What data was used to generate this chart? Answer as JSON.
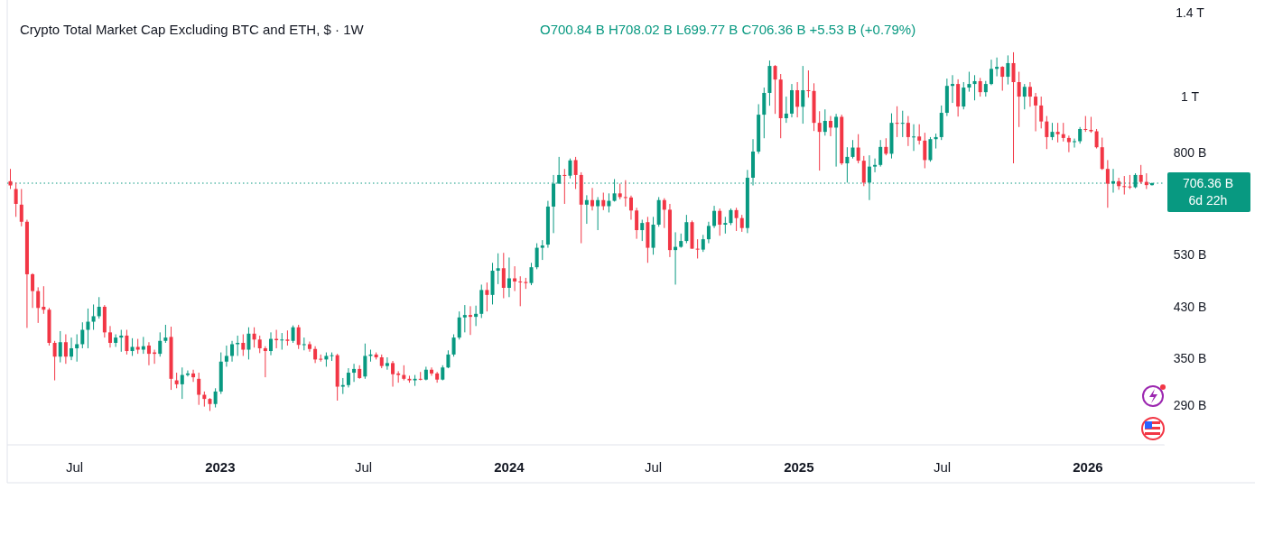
{
  "chart_data": {
    "type": "candlestick",
    "title": "Crypto Total Market Cap Excluding BTC and ETH, $ · 1W",
    "subtitle": "O700.84 B H708.02 B L699.77 B C706.36 B +5.53 B (+0.79%)",
    "x": [
      "2022-04-11",
      "2022-04-18",
      "2022-04-25",
      "2022-05-02",
      "2022-05-09",
      "2022-05-16",
      "2022-05-23",
      "2022-05-30",
      "2022-06-06",
      "2022-06-13",
      "2022-06-20",
      "2022-06-27",
      "2022-07-04",
      "2022-07-11",
      "2022-07-18",
      "2022-07-25",
      "2022-08-01",
      "2022-08-08",
      "2022-08-15",
      "2022-08-22",
      "2022-08-29",
      "2022-09-05",
      "2022-09-12",
      "2022-09-19",
      "2022-09-26",
      "2022-10-03",
      "2022-10-10",
      "2022-10-17",
      "2022-10-24",
      "2022-10-31",
      "2022-11-07",
      "2022-11-14",
      "2022-11-21",
      "2022-11-28",
      "2022-12-05",
      "2022-12-12",
      "2022-12-19",
      "2022-12-26",
      "2023-01-02",
      "2023-01-09",
      "2023-01-16",
      "2023-01-23",
      "2023-01-30",
      "2023-02-06",
      "2023-02-13",
      "2023-02-20",
      "2023-02-27",
      "2023-03-06",
      "2023-03-13",
      "2023-03-20",
      "2023-03-27",
      "2023-04-03",
      "2023-04-10",
      "2023-04-17",
      "2023-04-24",
      "2023-05-01",
      "2023-05-08",
      "2023-05-15",
      "2023-05-22",
      "2023-05-29",
      "2023-06-05",
      "2023-06-12",
      "2023-06-19",
      "2023-06-26",
      "2023-07-03",
      "2023-07-10",
      "2023-07-17",
      "2023-07-24",
      "2023-07-31",
      "2023-08-07",
      "2023-08-14",
      "2023-08-21",
      "2023-08-28",
      "2023-09-04",
      "2023-09-11",
      "2023-09-18",
      "2023-09-25",
      "2023-10-02",
      "2023-10-09",
      "2023-10-16",
      "2023-10-23",
      "2023-10-30",
      "2023-11-06",
      "2023-11-13",
      "2023-11-20",
      "2023-11-27",
      "2023-12-04",
      "2023-12-11",
      "2023-12-18",
      "2023-12-25",
      "2024-01-01",
      "2024-01-08",
      "2024-01-15",
      "2024-01-22",
      "2024-01-29",
      "2024-02-05",
      "2024-02-12",
      "2024-02-19",
      "2024-02-26",
      "2024-03-04",
      "2024-03-11",
      "2024-03-18",
      "2024-03-25",
      "2024-04-01",
      "2024-04-08",
      "2024-04-15",
      "2024-04-22",
      "2024-04-29",
      "2024-05-06",
      "2024-05-13",
      "2024-05-20",
      "2024-05-27",
      "2024-06-03",
      "2024-06-10",
      "2024-06-17",
      "2024-06-24",
      "2024-07-01",
      "2024-07-08",
      "2024-07-15",
      "2024-07-22",
      "2024-07-29",
      "2024-08-05",
      "2024-08-12",
      "2024-08-19",
      "2024-08-26",
      "2024-09-02",
      "2024-09-09",
      "2024-09-16",
      "2024-09-23",
      "2024-09-30",
      "2024-10-07",
      "2024-10-14",
      "2024-10-21",
      "2024-10-28",
      "2024-11-04",
      "2024-11-11",
      "2024-11-18",
      "2024-11-25",
      "2024-12-02",
      "2024-12-09",
      "2024-12-16",
      "2024-12-23",
      "2024-12-30",
      "2025-01-06",
      "2025-01-13",
      "2025-01-20",
      "2025-01-27",
      "2025-02-03",
      "2025-02-10",
      "2025-02-17",
      "2025-02-24",
      "2025-03-03",
      "2025-03-10",
      "2025-03-17",
      "2025-03-24",
      "2025-03-31",
      "2025-04-07",
      "2025-04-14",
      "2025-04-21",
      "2025-04-28",
      "2025-05-05",
      "2025-05-12",
      "2025-05-19",
      "2025-05-26",
      "2025-06-02",
      "2025-06-09",
      "2025-06-16",
      "2025-06-23",
      "2025-06-30",
      "2025-07-07",
      "2025-07-14",
      "2025-07-21",
      "2025-07-28",
      "2025-08-04",
      "2025-08-11",
      "2025-08-18",
      "2025-08-25",
      "2025-09-01",
      "2025-09-08",
      "2025-09-15",
      "2025-09-22",
      "2025-09-29",
      "2025-10-06",
      "2025-10-13",
      "2025-10-20",
      "2025-10-27",
      "2025-11-03",
      "2025-11-10",
      "2025-11-17",
      "2025-11-24",
      "2025-12-01",
      "2025-12-08",
      "2025-12-15",
      "2025-12-22",
      "2025-12-29",
      "2026-01-05",
      "2026-01-12",
      "2026-01-19",
      "2026-01-26",
      "2026-02-02",
      "2026-02-09",
      "2026-02-16",
      "2026-02-23",
      "2026-03-02",
      "2026-03-09",
      "2026-03-16",
      "2026-03-23"
    ],
    "ohlc": [
      [
        712000000000.0,
        748000000000.0,
        690000000000.0,
        700000000000.0
      ],
      [
        690000000000.0,
        708000000000.0,
        617000000000.0,
        650000000000.0
      ],
      [
        648000000000.0,
        690000000000.0,
        594000000000.0,
        605000000000.0
      ],
      [
        605000000000.0,
        610000000000.0,
        395000000000.0,
        490000000000.0
      ],
      [
        490000000000.0,
        492000000000.0,
        428000000000.0,
        458000000000.0
      ],
      [
        458000000000.0,
        465000000000.0,
        403000000000.0,
        428000000000.0
      ],
      [
        430000000000.0,
        467000000000.0,
        418000000000.0,
        425000000000.0
      ],
      [
        425000000000.0,
        428000000000.0,
        368000000000.0,
        372000000000.0
      ],
      [
        372000000000.0,
        375000000000.0,
        320000000000.0,
        352000000000.0
      ],
      [
        352000000000.0,
        390000000000.0,
        344000000000.0,
        373000000000.0
      ],
      [
        373000000000.0,
        385000000000.0,
        342000000000.0,
        352000000000.0
      ],
      [
        352000000000.0,
        380000000000.0,
        347000000000.0,
        364000000000.0
      ],
      [
        364000000000.0,
        385000000000.0,
        345000000000.0,
        370000000000.0
      ],
      [
        370000000000.0,
        404000000000.0,
        364000000000.0,
        392000000000.0
      ],
      [
        392000000000.0,
        427000000000.0,
        364000000000.0,
        405000000000.0
      ],
      [
        405000000000.0,
        434000000000.0,
        392000000000.0,
        414000000000.0
      ],
      [
        414000000000.0,
        447000000000.0,
        410000000000.0,
        430000000000.0
      ],
      [
        430000000000.0,
        433000000000.0,
        380000000000.0,
        388000000000.0
      ],
      [
        388000000000.0,
        398000000000.0,
        365000000000.0,
        372000000000.0
      ],
      [
        372000000000.0,
        385000000000.0,
        366000000000.0,
        380000000000.0
      ],
      [
        380000000000.0,
        392000000000.0,
        359000000000.0,
        383000000000.0
      ],
      [
        383000000000.0,
        392000000000.0,
        355000000000.0,
        360000000000.0
      ],
      [
        360000000000.0,
        379000000000.0,
        353000000000.0,
        366000000000.0
      ],
      [
        366000000000.0,
        378000000000.0,
        356000000000.0,
        362000000000.0
      ],
      [
        362000000000.0,
        381000000000.0,
        356000000000.0,
        367000000000.0
      ],
      [
        368000000000.0,
        373000000000.0,
        340000000000.0,
        356000000000.0
      ],
      [
        358000000000.0,
        362000000000.0,
        342000000000.0,
        356000000000.0
      ],
      [
        356000000000.0,
        388000000000.0,
        352000000000.0,
        375000000000.0
      ],
      [
        375000000000.0,
        400000000000.0,
        372000000000.0,
        380000000000.0
      ],
      [
        381000000000.0,
        397000000000.0,
        308000000000.0,
        322000000000.0
      ],
      [
        320000000000.0,
        330000000000.0,
        310000000000.0,
        315000000000.0
      ],
      [
        315000000000.0,
        337000000000.0,
        297000000000.0,
        327000000000.0
      ],
      [
        327000000000.0,
        333000000000.0,
        325000000000.0,
        329000000000.0
      ],
      [
        329000000000.0,
        334000000000.0,
        318000000000.0,
        324000000000.0
      ],
      [
        322000000000.0,
        330000000000.0,
        290000000000.0,
        302000000000.0
      ],
      [
        302000000000.0,
        306000000000.0,
        288000000000.0,
        297000000000.0
      ],
      [
        297000000000.0,
        298000000000.0,
        283000000000.0,
        291000000000.0
      ],
      [
        291000000000.0,
        310000000000.0,
        287000000000.0,
        306000000000.0
      ],
      [
        306000000000.0,
        358000000000.0,
        303000000000.0,
        345000000000.0
      ],
      [
        345000000000.0,
        368000000000.0,
        338000000000.0,
        353000000000.0
      ],
      [
        353000000000.0,
        375000000000.0,
        345000000000.0,
        370000000000.0
      ],
      [
        370000000000.0,
        383000000000.0,
        353000000000.0,
        372000000000.0
      ],
      [
        372000000000.0,
        385000000000.0,
        353000000000.0,
        362000000000.0
      ],
      [
        362000000000.0,
        396000000000.0,
        348000000000.0,
        386000000000.0
      ],
      [
        386000000000.0,
        396000000000.0,
        365000000000.0,
        377000000000.0
      ],
      [
        377000000000.0,
        383000000000.0,
        357000000000.0,
        364000000000.0
      ],
      [
        364000000000.0,
        367000000000.0,
        324000000000.0,
        360000000000.0
      ],
      [
        360000000000.0,
        388000000000.0,
        354000000000.0,
        378000000000.0
      ],
      [
        378000000000.0,
        392000000000.0,
        364000000000.0,
        376000000000.0
      ],
      [
        376000000000.0,
        387000000000.0,
        362000000000.0,
        377000000000.0
      ],
      [
        377000000000.0,
        391000000000.0,
        368000000000.0,
        375000000000.0
      ],
      [
        375000000000.0,
        399000000000.0,
        372000000000.0,
        396000000000.0
      ],
      [
        396000000000.0,
        400000000000.0,
        363000000000.0,
        369000000000.0
      ],
      [
        369000000000.0,
        380000000000.0,
        361000000000.0,
        370000000000.0
      ],
      [
        370000000000.0,
        374000000000.0,
        359000000000.0,
        363000000000.0
      ],
      [
        363000000000.0,
        367000000000.0,
        343000000000.0,
        348000000000.0
      ],
      [
        349000000000.0,
        355000000000.0,
        345000000000.0,
        348000000000.0
      ],
      [
        348000000000.0,
        358000000000.0,
        338000000000.0,
        353000000000.0
      ],
      [
        353000000000.0,
        358000000000.0,
        346000000000.0,
        354000000000.0
      ],
      [
        354000000000.0,
        356000000000.0,
        295000000000.0,
        312000000000.0
      ],
      [
        312000000000.0,
        323000000000.0,
        303000000000.0,
        314000000000.0
      ],
      [
        314000000000.0,
        336000000000.0,
        311000000000.0,
        330000000000.0
      ],
      [
        330000000000.0,
        342000000000.0,
        318000000000.0,
        335000000000.0
      ],
      [
        335000000000.0,
        340000000000.0,
        322000000000.0,
        323000000000.0
      ],
      [
        325000000000.0,
        371000000000.0,
        322000000000.0,
        353000000000.0
      ],
      [
        353000000000.0,
        362000000000.0,
        345000000000.0,
        355000000000.0
      ],
      [
        355000000000.0,
        358000000000.0,
        348000000000.0,
        351000000000.0
      ],
      [
        351000000000.0,
        355000000000.0,
        336000000000.0,
        339000000000.0
      ],
      [
        339000000000.0,
        351000000000.0,
        334000000000.0,
        343000000000.0
      ],
      [
        343000000000.0,
        346000000000.0,
        312000000000.0,
        328000000000.0
      ],
      [
        329000000000.0,
        332000000000.0,
        317000000000.0,
        327000000000.0
      ],
      [
        327000000000.0,
        340000000000.0,
        320000000000.0,
        322000000000.0
      ],
      [
        322000000000.0,
        326000000000.0,
        317000000000.0,
        320000000000.0
      ],
      [
        320000000000.0,
        327000000000.0,
        313000000000.0,
        322000000000.0
      ],
      [
        322000000000.0,
        331000000000.0,
        320000000000.0,
        321000000000.0
      ],
      [
        321000000000.0,
        338000000000.0,
        320000000000.0,
        334000000000.0
      ],
      [
        334000000000.0,
        337000000000.0,
        326000000000.0,
        329000000000.0
      ],
      [
        329000000000.0,
        331000000000.0,
        317000000000.0,
        321000000000.0
      ],
      [
        321000000000.0,
        340000000000.0,
        320000000000.0,
        337000000000.0
      ],
      [
        337000000000.0,
        361000000000.0,
        336000000000.0,
        355000000000.0
      ],
      [
        355000000000.0,
        385000000000.0,
        352000000000.0,
        380000000000.0
      ],
      [
        380000000000.0,
        422000000000.0,
        377000000000.0,
        412000000000.0
      ],
      [
        412000000000.0,
        433000000000.0,
        388000000000.0,
        416000000000.0
      ],
      [
        416000000000.0,
        431000000000.0,
        384000000000.0,
        413000000000.0
      ],
      [
        413000000000.0,
        432000000000.0,
        398000000000.0,
        418000000000.0
      ],
      [
        418000000000.0,
        470000000000.0,
        411000000000.0,
        460000000000.0
      ],
      [
        460000000000.0,
        474000000000.0,
        422000000000.0,
        451000000000.0
      ],
      [
        451000000000.0,
        513000000000.0,
        434000000000.0,
        497000000000.0
      ],
      [
        497000000000.0,
        533000000000.0,
        471000000000.0,
        502000000000.0
      ],
      [
        502000000000.0,
        534000000000.0,
        445000000000.0,
        464000000000.0
      ],
      [
        464000000000.0,
        524000000000.0,
        447000000000.0,
        482000000000.0
      ],
      [
        482000000000.0,
        506000000000.0,
        458000000000.0,
        476000000000.0
      ],
      [
        476000000000.0,
        486000000000.0,
        431000000000.0,
        475000000000.0
      ],
      [
        475000000000.0,
        483000000000.0,
        462000000000.0,
        473000000000.0
      ],
      [
        473000000000.0,
        513000000000.0,
        469000000000.0,
        504000000000.0
      ],
      [
        504000000000.0,
        555000000000.0,
        500000000000.0,
        545000000000.0
      ],
      [
        545000000000.0,
        562000000000.0,
        519000000000.0,
        550000000000.0
      ],
      [
        552000000000.0,
        658000000000.0,
        545000000000.0,
        643000000000.0
      ],
      [
        643000000000.0,
        730000000000.0,
        578000000000.0,
        705000000000.0
      ],
      [
        705000000000.0,
        785000000000.0,
        705000000000.0,
        730000000000.0
      ],
      [
        730000000000.0,
        748000000000.0,
        650000000000.0,
        728000000000.0
      ],
      [
        728000000000.0,
        780000000000.0,
        720000000000.0,
        774000000000.0
      ],
      [
        775000000000.0,
        785000000000.0,
        690000000000.0,
        730000000000.0
      ],
      [
        730000000000.0,
        738000000000.0,
        555000000000.0,
        648000000000.0
      ],
      [
        648000000000.0,
        673000000000.0,
        600000000000.0,
        660000000000.0
      ],
      [
        660000000000.0,
        693000000000.0,
        633000000000.0,
        644000000000.0
      ],
      [
        644000000000.0,
        668000000000.0,
        585000000000.0,
        660000000000.0
      ],
      [
        660000000000.0,
        680000000000.0,
        634000000000.0,
        644000000000.0
      ],
      [
        644000000000.0,
        678000000000.0,
        628000000000.0,
        658000000000.0
      ],
      [
        658000000000.0,
        718000000000.0,
        656000000000.0,
        678000000000.0
      ],
      [
        678000000000.0,
        705000000000.0,
        662000000000.0,
        668000000000.0
      ],
      [
        668000000000.0,
        715000000000.0,
        643000000000.0,
        667000000000.0
      ],
      [
        667000000000.0,
        672000000000.0,
        610000000000.0,
        633000000000.0
      ],
      [
        633000000000.0,
        640000000000.0,
        565000000000.0,
        585000000000.0
      ],
      [
        585000000000.0,
        610000000000.0,
        560000000000.0,
        602000000000.0
      ],
      [
        604000000000.0,
        617000000000.0,
        513000000000.0,
        545000000000.0
      ],
      [
        545000000000.0,
        617000000000.0,
        530000000000.0,
        598000000000.0
      ],
      [
        598000000000.0,
        668000000000.0,
        593000000000.0,
        660000000000.0
      ],
      [
        660000000000.0,
        665000000000.0,
        590000000000.0,
        635000000000.0
      ],
      [
        635000000000.0,
        650000000000.0,
        525000000000.0,
        540000000000.0
      ],
      [
        540000000000.0,
        580000000000.0,
        470000000000.0,
        547000000000.0
      ],
      [
        547000000000.0,
        577000000000.0,
        545000000000.0,
        560000000000.0
      ],
      [
        560000000000.0,
        622000000000.0,
        555000000000.0,
        604000000000.0
      ],
      [
        604000000000.0,
        608000000000.0,
        543000000000.0,
        543000000000.0
      ],
      [
        543000000000.0,
        564000000000.0,
        522000000000.0,
        541000000000.0
      ],
      [
        541000000000.0,
        574000000000.0,
        536000000000.0,
        564000000000.0
      ],
      [
        564000000000.0,
        605000000000.0,
        555000000000.0,
        595000000000.0
      ],
      [
        595000000000.0,
        645000000000.0,
        590000000000.0,
        632000000000.0
      ],
      [
        632000000000.0,
        638000000000.0,
        572000000000.0,
        598000000000.0
      ],
      [
        598000000000.0,
        617000000000.0,
        577000000000.0,
        602000000000.0
      ],
      [
        602000000000.0,
        638000000000.0,
        597000000000.0,
        634000000000.0
      ],
      [
        634000000000.0,
        640000000000.0,
        583000000000.0,
        614000000000.0
      ],
      [
        614000000000.0,
        622000000000.0,
        581000000000.0,
        590000000000.0
      ],
      [
        590000000000.0,
        745000000000.0,
        578000000000.0,
        722000000000.0
      ],
      [
        722000000000.0,
        843000000000.0,
        700000000000.0,
        802000000000.0
      ],
      [
        802000000000.0,
        970000000000.0,
        795000000000.0,
        930000000000.0
      ],
      [
        930000000000.0,
        1037000000000.0,
        846000000000.0,
        1015000000000.0
      ],
      [
        1015000000000.0,
        1156000000000.0,
        964000000000.0,
        1131000000000.0
      ],
      [
        1131000000000.0,
        1135000000000.0,
        933000000000.0,
        1071000000000.0
      ],
      [
        1071000000000.0,
        1095000000000.0,
        846000000000.0,
        917000000000.0
      ],
      [
        917000000000.0,
        1000000000000.0,
        900000000000.0,
        934000000000.0
      ],
      [
        934000000000.0,
        1052000000000.0,
        920000000000.0,
        1026000000000.0
      ],
      [
        1026000000000.0,
        1060000000000.0,
        920000000000.0,
        960000000000.0
      ],
      [
        960000000000.0,
        1131000000000.0,
        897000000000.0,
        1026000000000.0
      ],
      [
        1026000000000.0,
        1111000000000.0,
        996000000000.0,
        1023000000000.0
      ],
      [
        1023000000000.0,
        1055000000000.0,
        871000000000.0,
        900000000000.0
      ],
      [
        900000000000.0,
        943000000000.0,
        743000000000.0,
        868000000000.0
      ],
      [
        868000000000.0,
        950000000000.0,
        855000000000.0,
        907000000000.0
      ],
      [
        907000000000.0,
        925000000000.0,
        853000000000.0,
        883000000000.0
      ],
      [
        883000000000.0,
        933000000000.0,
        755000000000.0,
        922000000000.0
      ],
      [
        922000000000.0,
        930000000000.0,
        760000000000.0,
        765000000000.0
      ],
      [
        765000000000.0,
        816000000000.0,
        708000000000.0,
        785000000000.0
      ],
      [
        785000000000.0,
        840000000000.0,
        780000000000.0,
        815000000000.0
      ],
      [
        815000000000.0,
        860000000000.0,
        765000000000.0,
        773000000000.0
      ],
      [
        773000000000.0,
        788000000000.0,
        698000000000.0,
        708000000000.0
      ],
      [
        708000000000.0,
        790000000000.0,
        660000000000.0,
        755000000000.0
      ],
      [
        755000000000.0,
        780000000000.0,
        738000000000.0,
        760000000000.0
      ],
      [
        760000000000.0,
        840000000000.0,
        755000000000.0,
        817000000000.0
      ],
      [
        817000000000.0,
        846000000000.0,
        790000000000.0,
        795000000000.0
      ],
      [
        795000000000.0,
        935000000000.0,
        780000000000.0,
        900000000000.0
      ],
      [
        900000000000.0,
        962000000000.0,
        850000000000.0,
        897000000000.0
      ],
      [
        897000000000.0,
        945000000000.0,
        850000000000.0,
        900000000000.0
      ],
      [
        900000000000.0,
        925000000000.0,
        820000000000.0,
        850000000000.0
      ],
      [
        850000000000.0,
        895000000000.0,
        804000000000.0,
        852000000000.0
      ],
      [
        852000000000.0,
        895000000000.0,
        825000000000.0,
        838000000000.0
      ],
      [
        838000000000.0,
        865000000000.0,
        750000000000.0,
        775000000000.0
      ],
      [
        775000000000.0,
        850000000000.0,
        770000000000.0,
        843000000000.0
      ],
      [
        843000000000.0,
        862000000000.0,
        812000000000.0,
        850000000000.0
      ],
      [
        850000000000.0,
        965000000000.0,
        840000000000.0,
        937000000000.0
      ],
      [
        937000000000.0,
        1075000000000.0,
        925000000000.0,
        1044000000000.0
      ],
      [
        1044000000000.0,
        1090000000000.0,
        975000000000.0,
        1052000000000.0
      ],
      [
        1052000000000.0,
        1072000000000.0,
        923000000000.0,
        961000000000.0
      ],
      [
        961000000000.0,
        1060000000000.0,
        950000000000.0,
        1037000000000.0
      ],
      [
        1037000000000.0,
        1105000000000.0,
        1020000000000.0,
        1052000000000.0
      ],
      [
        1052000000000.0,
        1090000000000.0,
        985000000000.0,
        1064000000000.0
      ],
      [
        1064000000000.0,
        1078000000000.0,
        1000000000000.0,
        1018000000000.0
      ],
      [
        1018000000000.0,
        1065000000000.0,
        1000000000000.0,
        1052000000000.0
      ],
      [
        1052000000000.0,
        1160000000000.0,
        1047000000000.0,
        1118000000000.0
      ],
      [
        1118000000000.0,
        1170000000000.0,
        1085000000000.0,
        1127000000000.0
      ],
      [
        1127000000000.0,
        1130000000000.0,
        1024000000000.0,
        1083000000000.0
      ],
      [
        1083000000000.0,
        1180000000000.0,
        1050000000000.0,
        1144000000000.0
      ],
      [
        1144000000000.0,
        1195000000000.0,
        765000000000.0,
        1060000000000.0
      ],
      [
        1060000000000.0,
        1105000000000.0,
        885000000000.0,
        1000000000000.0
      ],
      [
        1000000000000.0,
        1052000000000.0,
        950000000000.0,
        1040000000000.0
      ],
      [
        1040000000000.0,
        1060000000000.0,
        960000000000.0,
        1000000000000.0
      ],
      [
        1000000000000.0,
        1015000000000.0,
        870000000000.0,
        965000000000.0
      ],
      [
        965000000000.0,
        1000000000000.0,
        880000000000.0,
        905000000000.0
      ],
      [
        905000000000.0,
        925000000000.0,
        810000000000.0,
        850000000000.0
      ],
      [
        850000000000.0,
        900000000000.0,
        840000000000.0,
        868000000000.0
      ],
      [
        868000000000.0,
        900000000000.0,
        832000000000.0,
        860000000000.0
      ],
      [
        860000000000.0,
        900000000000.0,
        835000000000.0,
        847000000000.0
      ],
      [
        847000000000.0,
        855000000000.0,
        800000000000.0,
        833000000000.0
      ],
      [
        833000000000.0,
        845000000000.0,
        815000000000.0,
        836000000000.0
      ],
      [
        836000000000.0,
        885000000000.0,
        828000000000.0,
        878000000000.0
      ],
      [
        878000000000.0,
        925000000000.0,
        868000000000.0,
        875000000000.0
      ],
      [
        875000000000.0,
        922000000000.0,
        865000000000.0,
        870000000000.0
      ],
      [
        870000000000.0,
        878000000000.0,
        812000000000.0,
        816000000000.0
      ],
      [
        816000000000.0,
        848000000000.0,
        745000000000.0,
        748000000000.0
      ],
      [
        748000000000.0,
        775000000000.0,
        640000000000.0,
        705000000000.0
      ],
      [
        705000000000.0,
        748000000000.0,
        680000000000.0,
        712000000000.0
      ],
      [
        712000000000.0,
        722000000000.0,
        688000000000.0,
        698000000000.0
      ],
      [
        698000000000.0,
        727000000000.0,
        675000000000.0,
        697000000000.0
      ],
      [
        697000000000.0,
        730000000000.0,
        690000000000.0,
        695000000000.0
      ],
      [
        695000000000.0,
        735000000000.0,
        692000000000.0,
        730000000000.0
      ],
      [
        730000000000.0,
        760000000000.0,
        705000000000.0,
        710000000000.0
      ],
      [
        710000000000.0,
        735000000000.0,
        690000000000.0,
        701000000000.0
      ],
      [
        700840000000.0,
        708020000000.0,
        699770000000.0,
        706360000000.0
      ]
    ],
    "colors": [
      "#f23645",
      "#f23645",
      "#f23645",
      "#f23645",
      "#f23645",
      "#f23645",
      "#f23645",
      "#f23645",
      "#f23645",
      "#089981",
      "#f23645",
      "#089981",
      "#089981",
      "#089981",
      "#089981",
      "#089981",
      "#089981",
      "#f23645",
      "#f23645",
      "#089981",
      "#089981",
      "#f23645",
      "#089981",
      "#f23645",
      "#089981",
      "#f23645",
      "#f23645",
      "#089981",
      "#089981",
      "#f23645",
      "#f23645",
      "#089981",
      "#089981",
      "#f23645",
      "#f23645",
      "#f23645",
      "#f23645",
      "#089981",
      "#089981",
      "#089981",
      "#089981",
      "#089981",
      "#f23645",
      "#089981",
      "#f23645",
      "#f23645",
      "#f23645",
      "#089981",
      "#f23645",
      "#089981",
      "#f23645",
      "#089981",
      "#f23645",
      "#089981",
      "#f23645",
      "#f23645",
      "#f23645",
      "#089981",
      "#089981",
      "#f23645",
      "#089981",
      "#089981",
      "#089981",
      "#f23645",
      "#089981",
      "#089981",
      "#f23645",
      "#f23645",
      "#089981",
      "#f23645",
      "#f23645",
      "#f23645",
      "#f23645",
      "#089981",
      "#f23645",
      "#089981",
      "#f23645",
      "#f23645",
      "#089981",
      "#089981",
      "#089981",
      "#089981",
      "#089981",
      "#f23645",
      "#089981",
      "#089981",
      "#f23645",
      "#089981",
      "#089981",
      "#f23645",
      "#089981",
      "#f23645",
      "#f23645",
      "#f23645",
      "#089981",
      "#089981",
      "#089981",
      "#089981",
      "#089981",
      "#089981",
      "#f23645",
      "#089981",
      "#f23645",
      "#f23645",
      "#089981",
      "#f23645",
      "#089981",
      "#f23645",
      "#089981",
      "#089981",
      "#f23645",
      "#f23645",
      "#f23645",
      "#f23645",
      "#089981",
      "#f23645",
      "#089981",
      "#089981",
      "#f23645",
      "#f23645",
      "#089981",
      "#089981",
      "#089981",
      "#f23645",
      "#f23645",
      "#089981",
      "#089981",
      "#089981",
      "#f23645",
      "#089981",
      "#089981",
      "#f23645",
      "#f23645",
      "#089981",
      "#089981",
      "#089981",
      "#089981",
      "#089981",
      "#f23645",
      "#f23645",
      "#089981",
      "#089981",
      "#f23645",
      "#089981",
      "#f23645",
      "#f23645",
      "#f23645",
      "#089981",
      "#f23645",
      "#089981",
      "#f23645",
      "#089981",
      "#089981",
      "#f23645",
      "#f23645",
      "#089981",
      "#089981",
      "#089981",
      "#f23645",
      "#089981",
      "#f23645",
      "#089981",
      "#f23645",
      "#089981",
      "#f23645",
      "#f23645",
      "#089981",
      "#089981",
      "#089981",
      "#089981",
      "#089981",
      "#f23645",
      "#089981",
      "#089981",
      "#089981",
      "#f23645",
      "#089981",
      "#089981",
      "#089981",
      "#f23645",
      "#089981",
      "#f23645",
      "#f23645",
      "#089981",
      "#f23645",
      "#f23645",
      "#f23645",
      "#f23645",
      "#089981",
      "#f23645",
      "#f23645",
      "#f23645",
      "#089981",
      "#089981",
      "#f23645",
      "#f23645",
      "#f23645",
      "#f23645",
      "#f23645",
      "#089981",
      "#f23645",
      "#f23645",
      "#f23645",
      "#089981",
      "#f23645",
      "#f23645",
      "#089981"
    ],
    "xlim": [
      "2022-04-07",
      "2026-04-08"
    ],
    "xticks": [
      {
        "value": "2022-07-01",
        "label": "Jul"
      },
      {
        "value": "2023-01-01",
        "label": "2023"
      },
      {
        "value": "2023-07-01",
        "label": "Jul"
      },
      {
        "value": "2024-01-01",
        "label": "2024"
      },
      {
        "value": "2024-07-01",
        "label": "Jul"
      },
      {
        "value": "2025-01-01",
        "label": "2025"
      },
      {
        "value": "2025-07-01",
        "label": "Jul"
      },
      {
        "value": "2026-01-01",
        "label": "2026"
      }
    ],
    "ylim": [
      247000000000.0,
      1474000000000.0
    ],
    "log": true,
    "yticks": [
      {
        "value": 290000000000.0,
        "label": "290 B"
      },
      {
        "value": 350000000000.0,
        "label": "350 B"
      },
      {
        "value": 430000000000.0,
        "label": "430 B"
      },
      {
        "value": 530000000000.0,
        "label": "530 B"
      },
      {
        "value": 800000000000.0,
        "label": "800 B"
      },
      {
        "value": 1000000000000.0,
        "label": "1 T"
      },
      {
        "value": 1400000000000.0,
        "label": "1.4 T"
      }
    ],
    "ref_lines": [
      {
        "axis": "y",
        "value": 706360000000.0,
        "label": "706.36 B",
        "color": "#089981",
        "line_style": "dotted"
      }
    ],
    "annotations": [
      "6d 22h"
    ]
  }
}
